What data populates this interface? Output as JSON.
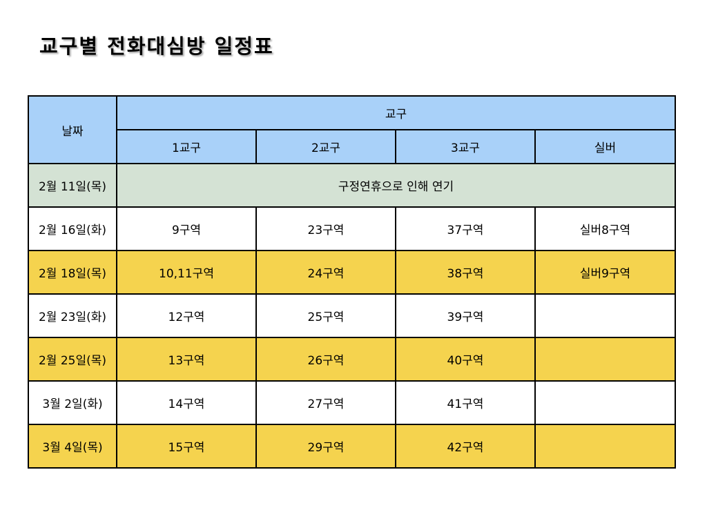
{
  "title": "교구별 전화대심방 일정표",
  "table": {
    "date_header": "날짜",
    "group_header": "교구",
    "columns": [
      "1교구",
      "2교구",
      "3교구",
      "실버"
    ],
    "rows": [
      {
        "date": "2월 11일(목)",
        "merged": "구정연휴으로 인해 연기"
      },
      {
        "date": "2월 16일(화)",
        "cells": [
          "9구역",
          "23구역",
          "37구역",
          "실버8구역"
        ]
      },
      {
        "date": "2월 18일(목)",
        "cells": [
          "10,11구역",
          "24구역",
          "38구역",
          "실버9구역"
        ]
      },
      {
        "date": "2월 23일(화)",
        "cells": [
          "12구역",
          "25구역",
          "39구역",
          ""
        ]
      },
      {
        "date": "2월 25일(목)",
        "cells": [
          "13구역",
          "26구역",
          "40구역",
          ""
        ]
      },
      {
        "date": "3월 2일(화)",
        "cells": [
          "14구역",
          "27구역",
          "41구역",
          ""
        ]
      },
      {
        "date": "3월 4일(목)",
        "cells": [
          "15구역",
          "29구역",
          "42구역",
          ""
        ]
      }
    ]
  },
  "colors": {
    "header_bg": "#a9d1f9",
    "postponed_bg": "#d4e2d4",
    "highlight_bg": "#f5d34e",
    "plain_bg": "#ffffff"
  }
}
